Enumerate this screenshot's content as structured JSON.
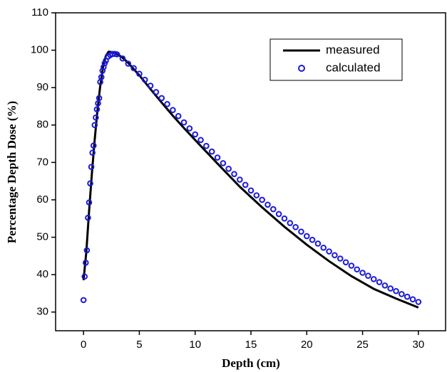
{
  "chart_data": {
    "type": "line",
    "x_label": "Depth (cm)",
    "y_label": "Percentage Depth Dose (%)",
    "xlim": [
      -2.5,
      32.5
    ],
    "xticks": [
      0,
      5,
      10,
      15,
      20,
      25,
      30
    ],
    "ylim": [
      25,
      110
    ],
    "yticks": [
      30,
      40,
      50,
      60,
      70,
      80,
      90,
      100,
      110
    ],
    "legend": "upper right",
    "series": [
      {
        "name": "measured",
        "color": "#000000",
        "mode": "line",
        "x": [
          0,
          0.25,
          0.5,
          0.75,
          1,
          1.25,
          1.5,
          1.75,
          2,
          2.25,
          2.5,
          3,
          3.5,
          4,
          5,
          6,
          7,
          8,
          9,
          10,
          12,
          14,
          16,
          18,
          20,
          22,
          24,
          26,
          28,
          30
        ],
        "values": [
          38.5,
          46,
          57,
          67,
          76,
          84,
          90.5,
          95.5,
          98.5,
          99.6,
          99.5,
          99,
          98,
          96.6,
          93.3,
          89.6,
          86,
          82.5,
          79.2,
          76,
          69.7,
          63.5,
          58,
          52.8,
          48,
          43.6,
          39.6,
          36.2,
          33.6,
          31.2
        ]
      },
      {
        "name": "calculated",
        "color": "#1a1adb",
        "mode": "markers",
        "x": [
          0,
          0.1,
          0.2,
          0.3,
          0.4,
          0.5,
          0.6,
          0.7,
          0.8,
          0.9,
          1.0,
          1.1,
          1.2,
          1.3,
          1.4,
          1.5,
          1.6,
          1.7,
          1.8,
          1.9,
          2.0,
          2.2,
          2.4,
          2.6,
          2.8,
          3.0,
          3.5,
          4.0,
          4.5,
          5.0,
          5.5,
          6,
          6.5,
          7,
          7.5,
          8,
          8.5,
          9,
          9.5,
          10,
          10.5,
          11,
          11.5,
          12,
          12.5,
          13,
          13.5,
          14,
          14.5,
          15,
          15.5,
          16,
          16.5,
          17,
          17.5,
          18,
          18.5,
          19,
          19.5,
          20,
          20.5,
          21,
          21.5,
          22,
          22.5,
          23,
          23.5,
          24,
          24.5,
          25,
          25.5,
          26,
          26.5,
          27,
          27.5,
          28,
          28.5,
          29,
          29.5,
          30
        ],
        "values": [
          33.2,
          39.5,
          43.2,
          46.5,
          55.2,
          59.3,
          64.4,
          68.8,
          72.6,
          74.5,
          80,
          82,
          84.2,
          85.8,
          87.2,
          91.5,
          92.8,
          94.5,
          95.5,
          96.5,
          97.2,
          98.3,
          98.7,
          99.0,
          99.0,
          98.9,
          97.8,
          96.4,
          95.2,
          93.7,
          92.1,
          90.5,
          88.8,
          87.2,
          85.6,
          84.0,
          82.4,
          80.7,
          79.1,
          77.5,
          76.0,
          74.4,
          72.9,
          71.3,
          69.8,
          68.3,
          66.9,
          65.4,
          64.0,
          62.5,
          61.2,
          60.0,
          58.7,
          57.5,
          56.2,
          55.0,
          53.8,
          52.7,
          51.5,
          50.3,
          49.3,
          48.3,
          47.2,
          46.2,
          45.2,
          44.3,
          43.3,
          42.4,
          41.4,
          40.5,
          39.7,
          38.8,
          38.0,
          37.1,
          36.3,
          35.6,
          34.8,
          34.1,
          33.4,
          32.7
        ]
      }
    ]
  }
}
